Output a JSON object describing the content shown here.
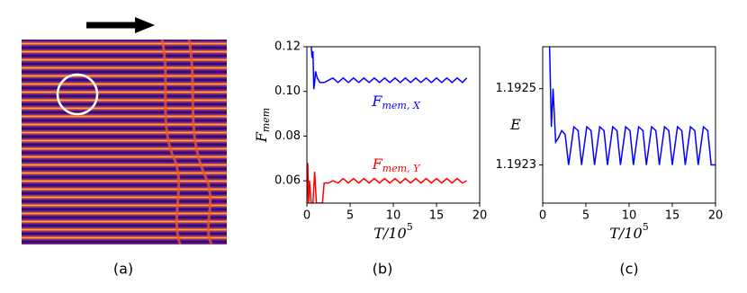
{
  "captions": [
    "(a)",
    "(b)",
    "(c)"
  ],
  "chart_data": [
    {
      "type": "line",
      "ylabel": {
        "main": "F",
        "sub": "mem"
      },
      "xlabel": {
        "main": "T/10",
        "sup": "5"
      },
      "xlim": [
        0,
        20
      ],
      "xticks": [
        0,
        5,
        10,
        15,
        20
      ],
      "ylim": [
        0.05,
        0.12
      ],
      "yticks": [
        0.06,
        0.08,
        {
          "value": 0.1,
          "label": "0.10"
        },
        0.12
      ],
      "series": [
        {
          "name": {
            "main": "F",
            "sub": "mem, X"
          },
          "color": "#0000ff",
          "x": [
            0.5,
            0.6,
            0.7,
            0.8,
            0.9,
            1.0,
            1.2,
            1.5,
            2.0,
            2.5,
            3.0,
            3.6,
            4.2,
            4.8,
            5.4,
            6.0,
            6.6,
            7.2,
            7.8,
            8.4,
            9.0,
            9.6,
            10.2,
            10.8,
            11.4,
            12.0,
            12.6,
            13.2,
            13.8,
            14.4,
            15.0,
            15.6,
            16.2,
            16.8,
            17.4,
            18.0,
            18.5
          ],
          "values": [
            0.12,
            0.115,
            0.118,
            0.101,
            0.104,
            0.109,
            0.106,
            0.104,
            0.104,
            0.105,
            0.106,
            0.104,
            0.106,
            0.104,
            0.106,
            0.104,
            0.106,
            0.104,
            0.106,
            0.104,
            0.106,
            0.104,
            0.106,
            0.104,
            0.106,
            0.104,
            0.106,
            0.104,
            0.106,
            0.104,
            0.106,
            0.104,
            0.106,
            0.104,
            0.106,
            0.104,
            0.106
          ]
        },
        {
          "name": {
            "main": "F",
            "sub": "mem, Y"
          },
          "color": "#ff0000",
          "x": [
            0.0,
            0.1,
            0.2,
            0.3,
            0.5,
            0.7,
            0.9,
            1.1,
            1.3,
            1.6,
            1.8,
            2.0,
            2.5,
            3.0,
            3.6,
            4.2,
            4.8,
            5.4,
            6.0,
            6.6,
            7.2,
            7.8,
            8.4,
            9.0,
            9.6,
            10.2,
            10.8,
            11.4,
            12.0,
            12.6,
            13.2,
            13.8,
            14.4,
            15.0,
            15.6,
            16.2,
            16.8,
            17.4,
            18.0,
            18.5
          ],
          "values": [
            0.05,
            0.068,
            0.05,
            0.06,
            0.05,
            0.05,
            0.064,
            0.05,
            0.05,
            0.05,
            0.05,
            0.059,
            0.059,
            0.06,
            0.059,
            0.061,
            0.059,
            0.061,
            0.059,
            0.061,
            0.059,
            0.061,
            0.059,
            0.061,
            0.059,
            0.061,
            0.059,
            0.061,
            0.059,
            0.061,
            0.059,
            0.061,
            0.059,
            0.061,
            0.059,
            0.061,
            0.059,
            0.061,
            0.059,
            0.06
          ]
        }
      ]
    },
    {
      "type": "line",
      "ylabel": {
        "main": "E"
      },
      "xlabel": {
        "main": "T/10",
        "sup": "5"
      },
      "xlim": [
        0,
        20
      ],
      "xticks": [
        0,
        5,
        10,
        15,
        20
      ],
      "ylim": [
        1.1922,
        1.19261
      ],
      "yticks": [
        1.1923,
        1.1925
      ],
      "series": [
        {
          "color": "#0000ff",
          "x": [
            0.8,
            1.0,
            1.2,
            1.5,
            1.8,
            2.2,
            2.6,
            3.0,
            3.6,
            4.1,
            4.5,
            5.1,
            5.6,
            6.0,
            6.6,
            7.1,
            7.5,
            8.1,
            8.6,
            9.0,
            9.6,
            10.1,
            10.5,
            11.1,
            11.6,
            12.0,
            12.6,
            13.1,
            13.5,
            14.1,
            14.6,
            15.0,
            15.6,
            16.1,
            16.5,
            17.1,
            17.6,
            18.0,
            18.6,
            19.1,
            19.5,
            20.0
          ],
          "values": [
            1.19261,
            1.1924,
            1.1925,
            1.19236,
            1.19237,
            1.19239,
            1.19238,
            1.1923,
            1.1924,
            1.19239,
            1.1923,
            1.1924,
            1.19239,
            1.1923,
            1.1924,
            1.19239,
            1.1923,
            1.1924,
            1.19239,
            1.1923,
            1.1924,
            1.19239,
            1.1923,
            1.1924,
            1.19239,
            1.1923,
            1.1924,
            1.19239,
            1.1923,
            1.1924,
            1.19239,
            1.1923,
            1.1924,
            1.19239,
            1.1923,
            1.1924,
            1.19239,
            1.1923,
            1.1924,
            1.19239,
            1.1923,
            1.1923
          ]
        }
      ]
    }
  ]
}
